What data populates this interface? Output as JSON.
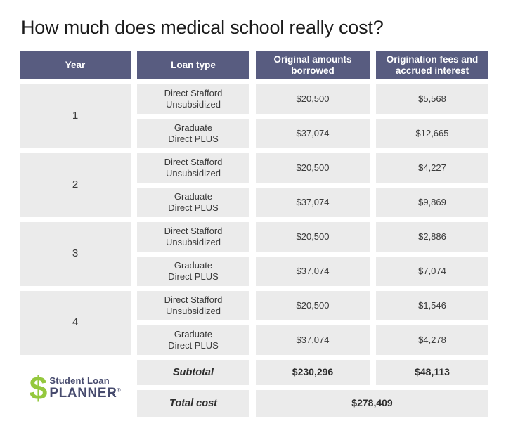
{
  "title": "How much does medical school really cost?",
  "colors": {
    "header_bg": "#585c80",
    "header_text": "#ffffff",
    "cell_bg": "#ebebeb",
    "cell_text": "#3a3a3a",
    "logo_green": "#94c83d",
    "logo_navy": "#474b6e",
    "background": "#ffffff"
  },
  "table": {
    "headers": {
      "year": "Year",
      "loan_type": "Loan type",
      "borrowed": "Original amounts\nborrowed",
      "fees": "Origination fees and\naccrued interest"
    },
    "years": [
      {
        "year": "1",
        "rows": [
          {
            "loan_type": "Direct Stafford\nUnsubsidized",
            "borrowed": "$20,500",
            "fees": "$5,568"
          },
          {
            "loan_type": "Graduate\nDirect PLUS",
            "borrowed": "$37,074",
            "fees": "$12,665"
          }
        ]
      },
      {
        "year": "2",
        "rows": [
          {
            "loan_type": "Direct Stafford\nUnsubsidized",
            "borrowed": "$20,500",
            "fees": "$4,227"
          },
          {
            "loan_type": "Graduate\nDirect PLUS",
            "borrowed": "$37,074",
            "fees": "$9,869"
          }
        ]
      },
      {
        "year": "3",
        "rows": [
          {
            "loan_type": "Direct Stafford\nUnsubsidized",
            "borrowed": "$20,500",
            "fees": "$2,886"
          },
          {
            "loan_type": "Graduate\nDirect PLUS",
            "borrowed": "$37,074",
            "fees": "$7,074"
          }
        ]
      },
      {
        "year": "4",
        "rows": [
          {
            "loan_type": "Direct Stafford\nUnsubsidized",
            "borrowed": "$20,500",
            "fees": "$1,546"
          },
          {
            "loan_type": "Graduate\nDirect PLUS",
            "borrowed": "$37,074",
            "fees": "$4,278"
          }
        ]
      }
    ],
    "subtotal": {
      "label": "Subtotal",
      "borrowed": "$230,296",
      "fees": "$48,113"
    },
    "total": {
      "label": "Total cost",
      "value": "$278,409"
    }
  },
  "logo": {
    "symbol": "$",
    "line1": "Student Loan",
    "line2": "PLANNER",
    "registered": "®"
  },
  "chart_data": {
    "type": "table",
    "title": "How much does medical school really cost?",
    "columns": [
      "Year",
      "Loan type",
      "Original amounts borrowed",
      "Origination fees and accrued interest"
    ],
    "rows": [
      [
        "1",
        "Direct Stafford Unsubsidized",
        20500,
        5568
      ],
      [
        "1",
        "Graduate Direct PLUS",
        37074,
        12665
      ],
      [
        "2",
        "Direct Stafford Unsubsidized",
        20500,
        4227
      ],
      [
        "2",
        "Graduate Direct PLUS",
        37074,
        9869
      ],
      [
        "3",
        "Direct Stafford Unsubsidized",
        20500,
        2886
      ],
      [
        "3",
        "Graduate Direct PLUS",
        37074,
        7074
      ],
      [
        "4",
        "Direct Stafford Unsubsidized",
        20500,
        1546
      ],
      [
        "4",
        "Graduate Direct PLUS",
        37074,
        4278
      ]
    ],
    "subtotal": {
      "original_amounts_borrowed": 230296,
      "origination_fees_and_accrued_interest": 48113
    },
    "total_cost": 278409
  }
}
